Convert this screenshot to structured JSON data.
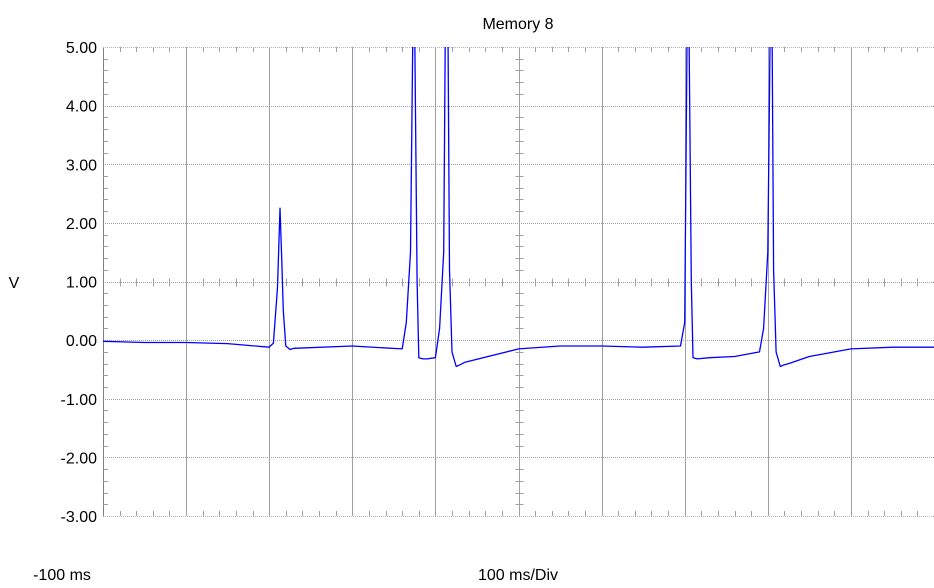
{
  "chart_data": {
    "type": "line",
    "title": "Memory 8",
    "ylabel": "V",
    "xlabel": "100 ms/Div",
    "x_start_label": "-100 ms",
    "ylim": [
      -3,
      5
    ],
    "x_divisions": 10,
    "y_tick_labels": [
      "5.00",
      "4.00",
      "3.00",
      "2.00",
      "1.00",
      "0.00",
      "-1.00",
      "-2.00",
      "-3.00"
    ],
    "y_ticks": [
      5,
      4,
      3,
      2,
      1,
      0,
      -1,
      -2,
      -3
    ],
    "grid": true,
    "series": [
      {
        "color": "#0000ff",
        "x": [
          0,
          0.5,
          1.0,
          1.5,
          2.0,
          2.05,
          2.1,
          2.13,
          2.15,
          2.17,
          2.2,
          2.25,
          2.3,
          3.0,
          3.6,
          3.65,
          3.7,
          3.73,
          3.75,
          3.78,
          3.8,
          3.85,
          3.9,
          4.0,
          4.05,
          4.1,
          4.12,
          4.15,
          4.17,
          4.2,
          4.25,
          4.3,
          4.35,
          5.0,
          5.5,
          6.0,
          6.5,
          6.95,
          7.0,
          7.03,
          7.05,
          7.08,
          7.1,
          7.15,
          7.3,
          7.6,
          7.9,
          7.95,
          8.0,
          8.03,
          8.05,
          8.07,
          8.1,
          8.15,
          8.2,
          8.25,
          8.5,
          9.0,
          9.5,
          10.0
        ],
        "y": [
          -0.02,
          -0.04,
          -0.04,
          -0.06,
          -0.12,
          -0.05,
          0.9,
          2.25,
          1.4,
          0.5,
          -0.1,
          -0.16,
          -0.14,
          -0.1,
          -0.15,
          0.3,
          1.5,
          5.5,
          5.5,
          1.0,
          -0.3,
          -0.32,
          -0.32,
          -0.3,
          0.2,
          1.5,
          5.5,
          5.5,
          1.2,
          -0.2,
          -0.45,
          -0.42,
          -0.38,
          -0.15,
          -0.1,
          -0.1,
          -0.12,
          -0.1,
          0.3,
          5.5,
          5.5,
          1.0,
          -0.3,
          -0.32,
          -0.3,
          -0.28,
          -0.2,
          0.2,
          1.5,
          5.5,
          5.5,
          1.2,
          -0.2,
          -0.45,
          -0.42,
          -0.4,
          -0.28,
          -0.15,
          -0.12,
          -0.12
        ]
      }
    ]
  }
}
